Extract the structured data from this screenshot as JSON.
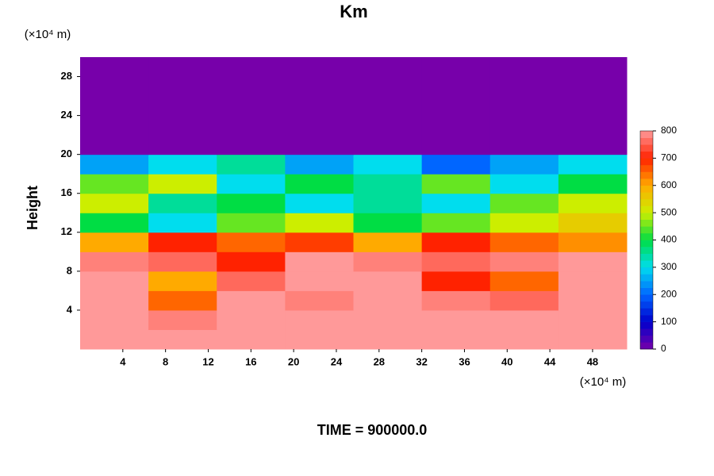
{
  "chart_data": {
    "type": "heatmap",
    "title": "Km",
    "y_label": "Height",
    "y_unit": "(×10⁴ m)",
    "x_unit": "(×10⁴ m)",
    "footer": "TIME = 900000.0",
    "xlim": [
      0,
      51.2
    ],
    "ylim": [
      0,
      30
    ],
    "xticks": [
      4,
      8,
      12,
      16,
      20,
      24,
      28,
      32,
      36,
      40,
      44,
      48
    ],
    "yticks": [
      4,
      8,
      12,
      16,
      20,
      24,
      28
    ],
    "x": [
      3.2,
      9.6,
      16,
      22.4,
      28.8,
      35.2,
      41.6,
      48
    ],
    "y": [
      1,
      3,
      5,
      7,
      9,
      11,
      13,
      15,
      17,
      19,
      21,
      23,
      25,
      27,
      29
    ],
    "z": [
      [
        800,
        800,
        800,
        800,
        800,
        800,
        800,
        800
      ],
      [
        800,
        780,
        800,
        800,
        800,
        800,
        800,
        800
      ],
      [
        800,
        650,
        800,
        780,
        800,
        780,
        760,
        800
      ],
      [
        800,
        600,
        760,
        800,
        800,
        700,
        650,
        800
      ],
      [
        780,
        760,
        700,
        800,
        780,
        760,
        780,
        800
      ],
      [
        600,
        700,
        650,
        680,
        600,
        700,
        650,
        620
      ],
      [
        400,
        300,
        450,
        500,
        400,
        450,
        500,
        550
      ],
      [
        500,
        350,
        400,
        300,
        350,
        300,
        450,
        500
      ],
      [
        450,
        500,
        300,
        400,
        350,
        450,
        300,
        400
      ],
      [
        250,
        300,
        350,
        250,
        300,
        200,
        250,
        300
      ],
      [
        0,
        0,
        0,
        0,
        0,
        0,
        0,
        0
      ],
      [
        0,
        0,
        0,
        0,
        0,
        0,
        0,
        0
      ],
      [
        0,
        0,
        0,
        0,
        0,
        0,
        0,
        0
      ],
      [
        0,
        0,
        0,
        0,
        0,
        0,
        0,
        0
      ],
      [
        0,
        0,
        0,
        0,
        0,
        0,
        0,
        0
      ]
    ],
    "zlim": [
      0,
      800
    ],
    "zticks": [
      0,
      100,
      200,
      300,
      400,
      500,
      600,
      700,
      800
    ],
    "colorscale": [
      "#7700aa",
      "#0000cc",
      "#0066ff",
      "#00ddee",
      "#00dd44",
      "#ccee00",
      "#ffaa00",
      "#ff2200",
      "#ff9999"
    ]
  }
}
